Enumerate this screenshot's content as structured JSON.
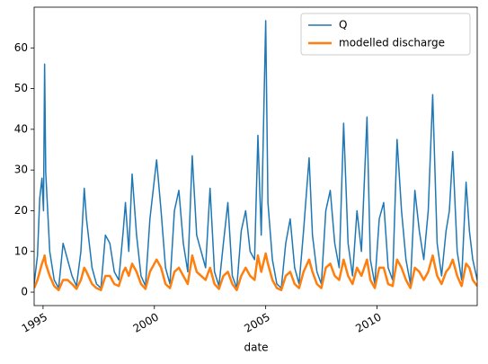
{
  "chart_data": {
    "type": "line",
    "x_label": "date",
    "x": [
      1994.6,
      1994.75,
      1994.85,
      1994.95,
      1995.02,
      1995.07,
      1995.12,
      1995.3,
      1995.5,
      1995.7,
      1995.9,
      1996.1,
      1996.3,
      1996.5,
      1996.7,
      1996.85,
      1996.95,
      1997.2,
      1997.4,
      1997.6,
      1997.8,
      1998.0,
      1998.2,
      1998.4,
      1998.6,
      1998.7,
      1998.85,
      1999.0,
      1999.2,
      1999.4,
      1999.6,
      1999.8,
      2000.1,
      2000.3,
      2000.5,
      2000.7,
      2000.9,
      2001.1,
      2001.3,
      2001.5,
      2001.7,
      2001.9,
      2002.1,
      2002.3,
      2002.5,
      2002.7,
      2002.9,
      2003.1,
      2003.3,
      2003.5,
      2003.7,
      2003.9,
      2004.1,
      2004.3,
      2004.5,
      2004.65,
      2004.8,
      2005.0,
      2005.1,
      2005.3,
      2005.5,
      2005.7,
      2005.9,
      2006.1,
      2006.3,
      2006.5,
      2006.7,
      2006.95,
      2007.1,
      2007.3,
      2007.5,
      2007.7,
      2007.9,
      2008.1,
      2008.3,
      2008.5,
      2008.7,
      2008.9,
      2009.1,
      2009.3,
      2009.55,
      2009.7,
      2009.9,
      2010.1,
      2010.3,
      2010.5,
      2010.7,
      2010.9,
      2011.1,
      2011.3,
      2011.5,
      2011.7,
      2011.9,
      2012.1,
      2012.3,
      2012.5,
      2012.7,
      2012.9,
      2013.1,
      2013.25,
      2013.4,
      2013.6,
      2013.8,
      2014.0,
      2014.15,
      2014.3,
      2014.5
    ],
    "series": [
      {
        "name": "Q",
        "color": "#1f77b4",
        "width": 1.5,
        "values": [
          2,
          9,
          23,
          28,
          20,
          56,
          29.5,
          10,
          3,
          1,
          12,
          8,
          4,
          1.5,
          10,
          25.5,
          18,
          6,
          2,
          1,
          14,
          12,
          5,
          3,
          15,
          22,
          10,
          29,
          14,
          4,
          1.5,
          18,
          32.5,
          20,
          6,
          2,
          20,
          25,
          12,
          5,
          33.5,
          14,
          10,
          6,
          25.5,
          5,
          1.5,
          12,
          22,
          4,
          1,
          15,
          20,
          10,
          8,
          38.5,
          14,
          66.7,
          22,
          8,
          2,
          1,
          12,
          18,
          6,
          2,
          15,
          33,
          14,
          5,
          2,
          20,
          25,
          12,
          6,
          41.5,
          12,
          4,
          20,
          10,
          43,
          8,
          2,
          18,
          22,
          6,
          3,
          37.5,
          20,
          8,
          2,
          25,
          15,
          8,
          20,
          48.5,
          12,
          4,
          15,
          20,
          34.5,
          10,
          3,
          27,
          15,
          8,
          3
        ]
      },
      {
        "name": "modelled discharge",
        "color": "#ff7f0e",
        "width": 2.5,
        "values": [
          1,
          3,
          5,
          7,
          8,
          9,
          7,
          4,
          1.5,
          0.5,
          3,
          3,
          2,
          0.8,
          3,
          6,
          5,
          2,
          1,
          0.5,
          4,
          4,
          2,
          1.5,
          5,
          6,
          4,
          7,
          5,
          2,
          0.8,
          5,
          8,
          6,
          2,
          1,
          5,
          6,
          4,
          2,
          9,
          5,
          4,
          3,
          6,
          2,
          0.8,
          4,
          5,
          2,
          0.5,
          4,
          6,
          4,
          3,
          9,
          5,
          9.5,
          7,
          3,
          1,
          0.5,
          4,
          5,
          2,
          1,
          5,
          8,
          5,
          2,
          1,
          6,
          7,
          4,
          3,
          8,
          4,
          2,
          6,
          4,
          8,
          3,
          1,
          6,
          6,
          2,
          1.5,
          8,
          6,
          3,
          1,
          6,
          5,
          3,
          5,
          9,
          4,
          2,
          5,
          6,
          8,
          4,
          1.5,
          7,
          6,
          3,
          1.5
        ]
      }
    ],
    "xlim": [
      1994.6,
      2014.5
    ],
    "xticks": [
      1995,
      2000,
      2005,
      2010
    ],
    "ylim": [
      -3.3,
      70.0
    ],
    "yticks": [
      0,
      10,
      20,
      30,
      40,
      50,
      60
    ],
    "legend": "upper right"
  }
}
